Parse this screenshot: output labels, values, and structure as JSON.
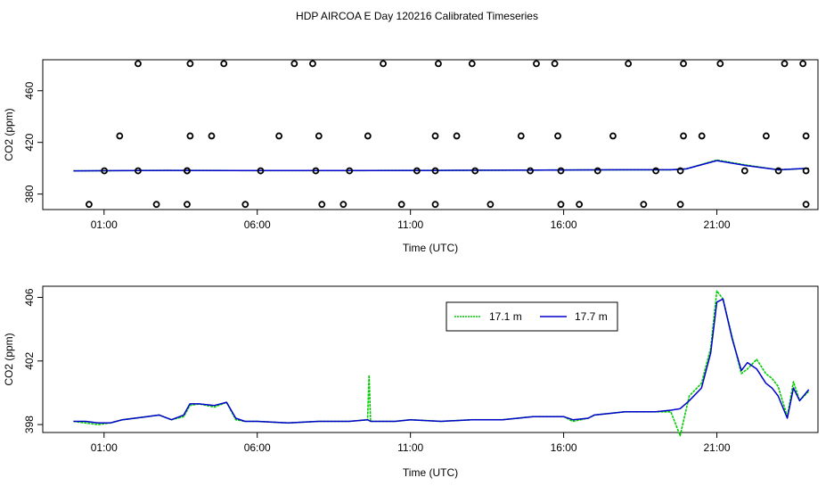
{
  "figure": {
    "title": "HDP AIRCOA E  Day 120216  Calibrated Timeseries"
  },
  "chart_data": [
    {
      "type": "scatter",
      "xlabel": "Time (UTC)",
      "ylabel": "CO2 (ppm)",
      "x_unit": "hours UTC",
      "xlim": [
        -1.0,
        24.3
      ],
      "ylim": [
        368,
        484
      ],
      "x_ticks": [
        {
          "x": 1,
          "label": "01:00"
        },
        {
          "x": 6,
          "label": "06:00"
        },
        {
          "x": 11,
          "label": "11:00"
        },
        {
          "x": 16,
          "label": "16:00"
        },
        {
          "x": 21,
          "label": "21:00"
        }
      ],
      "y_ticks": [
        {
          "y": 380,
          "label": "380"
        },
        {
          "y": 420,
          "label": "420"
        },
        {
          "y": 460,
          "label": "460"
        }
      ],
      "calibration_points": [
        {
          "x": 1.01,
          "y": 398
        },
        {
          "x": 2.11,
          "y": 398
        },
        {
          "x": 3.71,
          "y": 398
        },
        {
          "x": 3.71,
          "y": 398
        },
        {
          "x": 6.11,
          "y": 398
        },
        {
          "x": 7.91,
          "y": 398
        },
        {
          "x": 9.01,
          "y": 398
        },
        {
          "x": 11.21,
          "y": 398
        },
        {
          "x": 11.81,
          "y": 398
        },
        {
          "x": 13.11,
          "y": 398
        },
        {
          "x": 14.91,
          "y": 398
        },
        {
          "x": 15.91,
          "y": 398
        },
        {
          "x": 17.11,
          "y": 398
        },
        {
          "x": 19.01,
          "y": 398
        },
        {
          "x": 19.81,
          "y": 398
        },
        {
          "x": 21.91,
          "y": 398
        },
        {
          "x": 23.01,
          "y": 398
        },
        {
          "x": 23.91,
          "y": 398
        },
        {
          "x": 0.51,
          "y": 372
        },
        {
          "x": 2.71,
          "y": 372
        },
        {
          "x": 3.71,
          "y": 372
        },
        {
          "x": 5.61,
          "y": 372
        },
        {
          "x": 8.11,
          "y": 372
        },
        {
          "x": 8.81,
          "y": 372
        },
        {
          "x": 10.71,
          "y": 372
        },
        {
          "x": 11.81,
          "y": 372
        },
        {
          "x": 13.61,
          "y": 372
        },
        {
          "x": 15.91,
          "y": 372
        },
        {
          "x": 16.51,
          "y": 372
        },
        {
          "x": 18.61,
          "y": 372
        },
        {
          "x": 19.81,
          "y": 372
        },
        {
          "x": 23.91,
          "y": 372
        },
        {
          "x": 1.51,
          "y": 425
        },
        {
          "x": 3.81,
          "y": 425
        },
        {
          "x": 4.51,
          "y": 425
        },
        {
          "x": 6.71,
          "y": 425
        },
        {
          "x": 8.01,
          "y": 425
        },
        {
          "x": 9.61,
          "y": 425
        },
        {
          "x": 11.81,
          "y": 425
        },
        {
          "x": 12.51,
          "y": 425
        },
        {
          "x": 14.61,
          "y": 425
        },
        {
          "x": 15.81,
          "y": 425
        },
        {
          "x": 17.61,
          "y": 425
        },
        {
          "x": 19.91,
          "y": 425
        },
        {
          "x": 20.51,
          "y": 425
        },
        {
          "x": 22.61,
          "y": 425
        },
        {
          "x": 23.91,
          "y": 425
        },
        {
          "x": 2.11,
          "y": 481
        },
        {
          "x": 3.81,
          "y": 481
        },
        {
          "x": 4.91,
          "y": 481
        },
        {
          "x": 7.21,
          "y": 481
        },
        {
          "x": 7.81,
          "y": 481
        },
        {
          "x": 10.11,
          "y": 481
        },
        {
          "x": 11.91,
          "y": 481
        },
        {
          "x": 13.01,
          "y": 481
        },
        {
          "x": 15.11,
          "y": 481
        },
        {
          "x": 15.71,
          "y": 481
        },
        {
          "x": 18.11,
          "y": 481
        },
        {
          "x": 19.91,
          "y": 481
        },
        {
          "x": 21.11,
          "y": 481
        },
        {
          "x": 23.21,
          "y": 481
        },
        {
          "x": 23.81,
          "y": 481
        }
      ],
      "series": [
        {
          "name": "17.1 m",
          "color": "#00cc00",
          "x": [
            0,
            3,
            6,
            9,
            12,
            15,
            18,
            19.5,
            20.0,
            21.0,
            22.0,
            23.0,
            24.0
          ],
          "y": [
            398.0,
            398.3,
            398.2,
            398.2,
            398.3,
            398.5,
            398.8,
            398.8,
            399.5,
            406.3,
            402.3,
            398.8,
            399.9
          ]
        },
        {
          "name": "17.7 m",
          "color": "#0000cc",
          "x": [
            0,
            3,
            6,
            9,
            12,
            15,
            18,
            19.5,
            20.0,
            21.0,
            22.0,
            23.0,
            24.0
          ],
          "y": [
            398.0,
            398.3,
            398.2,
            398.2,
            398.3,
            398.5,
            398.8,
            398.8,
            399.5,
            405.9,
            401.9,
            398.8,
            399.9
          ]
        }
      ]
    },
    {
      "type": "line",
      "xlabel": "Time (UTC)",
      "ylabel": "CO2 (ppm)",
      "x_unit": "hours UTC",
      "xlim": [
        -1.0,
        24.3
      ],
      "ylim": [
        397.5,
        406.7
      ],
      "x_ticks": [
        {
          "x": 1,
          "label": "01:00"
        },
        {
          "x": 6,
          "label": "06:00"
        },
        {
          "x": 11,
          "label": "11:00"
        },
        {
          "x": 16,
          "label": "16:00"
        },
        {
          "x": 21,
          "label": "21:00"
        }
      ],
      "y_ticks": [
        {
          "y": 398,
          "label": "398"
        },
        {
          "y": 402,
          "label": "402"
        },
        {
          "y": 406,
          "label": "406"
        }
      ],
      "legend": "top-right",
      "series": [
        {
          "name": "17.1 m",
          "color": "#00cc00",
          "x": [
            0,
            0.4,
            0.8,
            1.2,
            1.6,
            2.0,
            2.4,
            2.8,
            3.2,
            3.6,
            3.8,
            4.1,
            4.6,
            5.0,
            5.3,
            5.6,
            6.0,
            7.0,
            8.0,
            9.0,
            9.6,
            9.65,
            9.7,
            9.8,
            10.5,
            11.0,
            12.0,
            13.0,
            14.0,
            15.0,
            16.0,
            16.3,
            16.8,
            17.0,
            17.5,
            18.0,
            19.0,
            19.5,
            19.8,
            20.1,
            20.5,
            20.8,
            21.0,
            21.2,
            21.5,
            21.8,
            22.0,
            22.3,
            22.6,
            22.8,
            23.0,
            23.3,
            23.5,
            23.7,
            24.0
          ],
          "y": [
            398.2,
            398.1,
            398.0,
            398.1,
            398.3,
            398.4,
            398.5,
            398.6,
            398.3,
            398.5,
            399.2,
            399.3,
            399.1,
            399.4,
            398.3,
            398.2,
            398.2,
            398.1,
            398.2,
            398.2,
            398.3,
            401.1,
            398.2,
            398.2,
            398.2,
            398.3,
            398.2,
            398.3,
            398.3,
            398.5,
            398.5,
            398.2,
            398.4,
            398.6,
            398.7,
            398.8,
            398.8,
            398.8,
            397.3,
            399.8,
            400.6,
            402.8,
            406.4,
            405.9,
            403.5,
            401.2,
            401.5,
            402.1,
            401.2,
            400.9,
            400.4,
            398.5,
            400.7,
            399.5,
            400.1
          ]
        },
        {
          "name": "17.7 m",
          "color": "#0000cc",
          "x": [
            0,
            0.4,
            0.8,
            1.2,
            1.6,
            2.0,
            2.4,
            2.8,
            3.2,
            3.6,
            3.8,
            4.1,
            4.6,
            5.0,
            5.3,
            5.6,
            6.0,
            7.0,
            8.0,
            9.0,
            9.6,
            9.7,
            9.8,
            10.5,
            11.0,
            12.0,
            13.0,
            14.0,
            15.0,
            16.0,
            16.3,
            16.8,
            17.0,
            17.5,
            18.0,
            19.0,
            19.5,
            19.8,
            20.1,
            20.5,
            20.8,
            21.0,
            21.2,
            21.5,
            21.8,
            22.0,
            22.3,
            22.6,
            22.8,
            23.0,
            23.3,
            23.5,
            23.7,
            24.0
          ],
          "y": [
            398.2,
            398.2,
            398.1,
            398.1,
            398.3,
            398.4,
            398.5,
            398.6,
            398.3,
            398.6,
            399.3,
            399.3,
            399.2,
            399.4,
            398.4,
            398.2,
            398.2,
            398.1,
            398.2,
            398.2,
            398.3,
            398.2,
            398.2,
            398.2,
            398.3,
            398.2,
            398.3,
            398.3,
            398.5,
            398.5,
            398.3,
            398.4,
            398.6,
            398.7,
            398.8,
            398.8,
            398.9,
            399.0,
            399.5,
            400.3,
            402.5,
            405.7,
            405.9,
            403.4,
            401.4,
            401.9,
            401.5,
            400.6,
            400.3,
            399.8,
            398.4,
            400.3,
            399.5,
            400.2
          ]
        }
      ]
    }
  ]
}
